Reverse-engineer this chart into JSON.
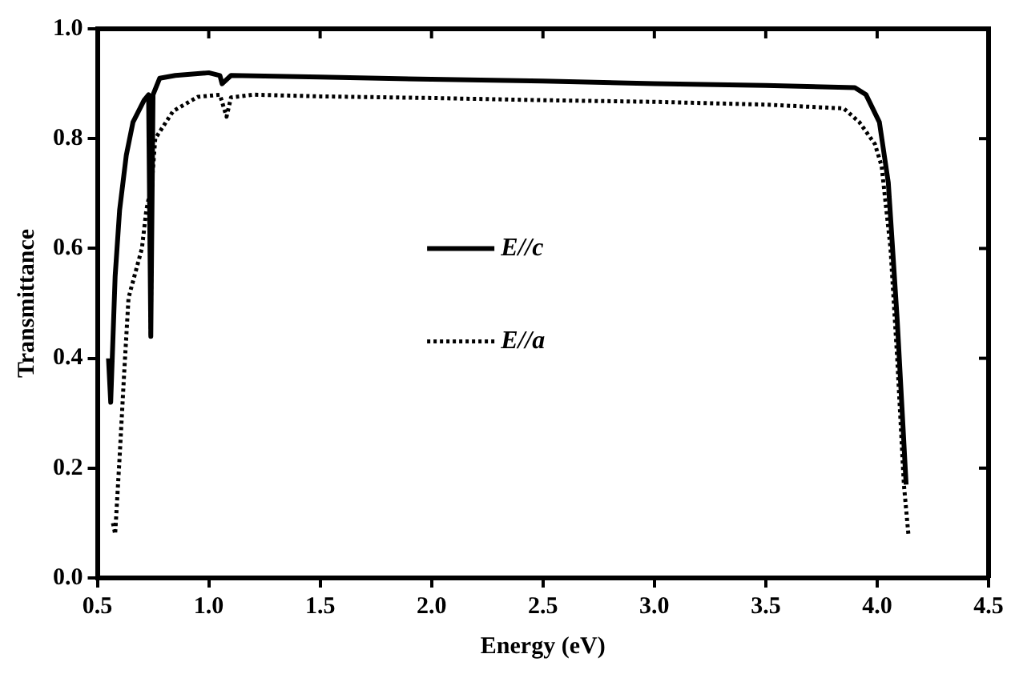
{
  "chart_data": {
    "type": "line",
    "xlabel": "Energy (eV)",
    "ylabel": "Transmittance",
    "xlim": [
      0.5,
      4.5
    ],
    "xticks": [
      0.5,
      {
        "value": 1,
        "label": "1.0"
      },
      1.5,
      {
        "value": 2,
        "label": "2.0"
      },
      2.5,
      {
        "value": 3,
        "label": "3.0"
      },
      3.5,
      {
        "value": 4,
        "label": "4.0"
      },
      4.5
    ],
    "ylim": [
      0,
      1
    ],
    "yticks": [
      {
        "value": 0,
        "label": "0.0"
      },
      0.2,
      0.4,
      0.6,
      0.8,
      {
        "value": 1,
        "label": "1.0"
      }
    ],
    "grid": false,
    "legend": "center",
    "marker": "none",
    "series": [
      {
        "name": "E//c",
        "color": "#000000",
        "line_style": "solid",
        "x": [
          0.55,
          0.56,
          0.58,
          0.6,
          0.63,
          0.66,
          0.71,
          0.73,
          0.74,
          0.75,
          0.78,
          0.85,
          1.0,
          1.05,
          1.06,
          1.1,
          1.5,
          2.0,
          2.5,
          3.0,
          3.5,
          3.9,
          3.95,
          4.01,
          4.05,
          4.09,
          4.13
        ],
        "values": [
          0.4,
          0.32,
          0.55,
          0.67,
          0.77,
          0.83,
          0.87,
          0.88,
          0.44,
          0.88,
          0.91,
          0.915,
          0.92,
          0.915,
          0.9,
          0.915,
          0.912,
          0.908,
          0.905,
          0.9,
          0.897,
          0.893,
          0.88,
          0.83,
          0.72,
          0.47,
          0.17
        ]
      },
      {
        "name": "E//a",
        "color": "#000000",
        "line_style": "dotted",
        "x": [
          0.57,
          0.58,
          0.6,
          0.62,
          0.64,
          0.7,
          0.72,
          0.735,
          0.74,
          0.745,
          0.76,
          0.84,
          0.95,
          1.05,
          1.08,
          1.1,
          1.2,
          1.5,
          2.0,
          2.5,
          3.0,
          3.5,
          3.85,
          3.92,
          3.99,
          4.02,
          4.06,
          4.09,
          4.12,
          4.14
        ],
        "values": [
          0.1,
          0.08,
          0.22,
          0.37,
          0.51,
          0.6,
          0.67,
          0.7,
          0.44,
          0.72,
          0.8,
          0.85,
          0.876,
          0.88,
          0.84,
          0.875,
          0.88,
          0.877,
          0.874,
          0.87,
          0.867,
          0.862,
          0.855,
          0.83,
          0.79,
          0.75,
          0.6,
          0.4,
          0.17,
          0.08
        ]
      }
    ]
  }
}
